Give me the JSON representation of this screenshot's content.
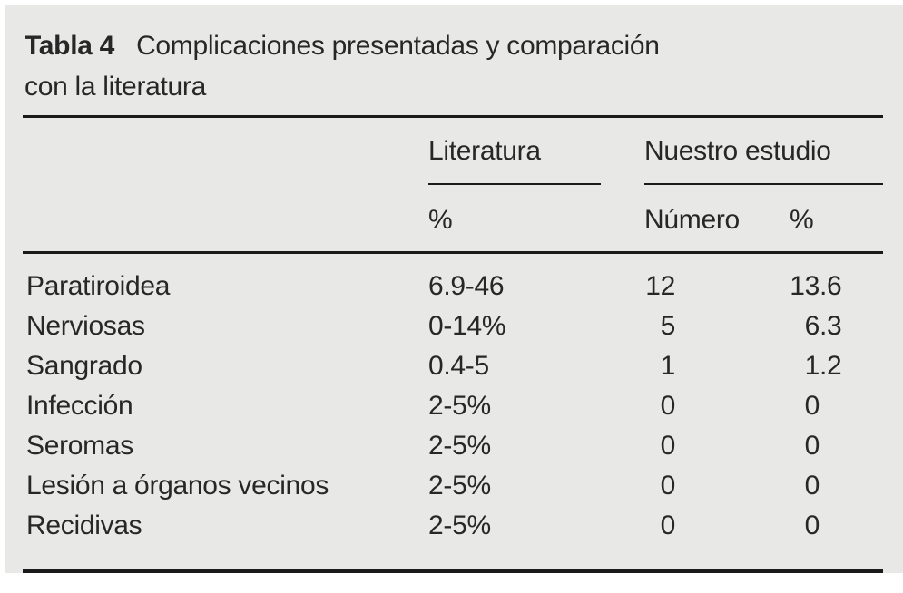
{
  "colors": {
    "panel_bg": "#e8e8e7",
    "text": "#272727",
    "rule": "#1a1a1a"
  },
  "caption": {
    "table_number": "Tabla 4",
    "title_line1": "Complicaciones presentadas y comparación",
    "title_line2": "con la literatura"
  },
  "table": {
    "column_groups": [
      {
        "label": "Literatura"
      },
      {
        "label": "Nuestro estudio"
      }
    ],
    "subheaders": {
      "literatura_pct": "%",
      "numero": "Número",
      "estudio_pct": "%"
    },
    "rows": [
      {
        "label": "Paratiroidea",
        "literatura": "6.9-46",
        "numero": "12",
        "pct": "13.6",
        "pct_int": "13",
        "pct_frac": ".6"
      },
      {
        "label": "Nerviosas",
        "literatura": "0-14%",
        "numero": "5",
        "pct": "6.3",
        "pct_int": "6",
        "pct_frac": ".3"
      },
      {
        "label": "Sangrado",
        "literatura": "0.4-5",
        "numero": "1",
        "pct": "1.2",
        "pct_int": "1",
        "pct_frac": ".2"
      },
      {
        "label": "Infección",
        "literatura": "2-5%",
        "numero": "0",
        "pct": "0",
        "pct_int": "0",
        "pct_frac": ""
      },
      {
        "label": "Seromas",
        "literatura": "2-5%",
        "numero": "0",
        "pct": "0",
        "pct_int": "0",
        "pct_frac": ""
      },
      {
        "label": "Lesión a órganos vecinos",
        "literatura": "2-5%",
        "numero": "0",
        "pct": "0",
        "pct_int": "0",
        "pct_frac": ""
      },
      {
        "label": "Recidivas",
        "literatura": "2-5%",
        "numero": "0",
        "pct": "0",
        "pct_int": "0",
        "pct_frac": ""
      }
    ]
  }
}
